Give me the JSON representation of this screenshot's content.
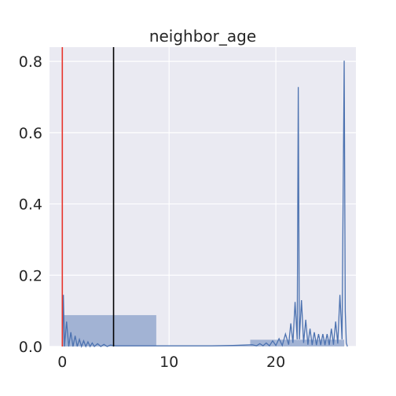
{
  "chart_data": {
    "type": "area",
    "title": "neighbor_age",
    "xlabel": "",
    "ylabel": "",
    "xlim": [
      -1.2,
      27.5
    ],
    "ylim": [
      0,
      0.84
    ],
    "xticks": [
      0,
      10,
      20
    ],
    "yticks": [
      0.0,
      0.2,
      0.4,
      0.6,
      0.8
    ],
    "xtick_labels": [
      "0",
      "10",
      "20"
    ],
    "ytick_labels": [
      "0.0",
      "0.2",
      "0.4",
      "0.6",
      "0.8"
    ],
    "grid": true,
    "legend": "none",
    "histogram": {
      "bins": [
        {
          "x0": 0,
          "x1": 8.8,
          "value": 0.088
        },
        {
          "x0": 8.8,
          "x1": 17.6,
          "value": 0.003
        },
        {
          "x0": 17.6,
          "x1": 26.4,
          "value": 0.019
        }
      ],
      "color": "#4c72b0"
    },
    "density_series": {
      "color": "#4c72b0",
      "x": [
        0.0,
        0.1,
        0.2,
        0.4,
        0.6,
        0.8,
        1.0,
        1.2,
        1.4,
        1.6,
        1.8,
        2.0,
        2.2,
        2.4,
        2.6,
        2.8,
        3.0,
        3.3,
        3.6,
        3.9,
        4.2,
        4.5,
        5.0,
        6.0,
        8.0,
        10.0,
        12.0,
        14.0,
        16.0,
        17.0,
        17.8,
        18.2,
        18.5,
        18.8,
        19.1,
        19.4,
        19.7,
        20.0,
        20.3,
        20.6,
        20.9,
        21.2,
        21.4,
        21.6,
        21.8,
        22.0,
        22.1,
        22.2,
        22.4,
        22.6,
        22.8,
        23.0,
        23.2,
        23.4,
        23.6,
        23.8,
        24.0,
        24.2,
        24.4,
        24.6,
        24.8,
        25.0,
        25.2,
        25.4,
        25.6,
        25.8,
        26.0,
        26.2,
        26.4,
        26.5,
        26.6,
        26.7
      ],
      "y": [
        0.0,
        0.145,
        0.0,
        0.07,
        0.0,
        0.04,
        0.0,
        0.03,
        0.0,
        0.02,
        0.0,
        0.016,
        0.0,
        0.013,
        0.0,
        0.01,
        0.0,
        0.008,
        0.0,
        0.006,
        0.0,
        0.004,
        0.002,
        0.002,
        0.002,
        0.002,
        0.002,
        0.002,
        0.003,
        0.004,
        0.005,
        0.002,
        0.008,
        0.002,
        0.01,
        0.002,
        0.016,
        0.003,
        0.022,
        0.003,
        0.035,
        0.005,
        0.065,
        0.01,
        0.125,
        0.02,
        0.728,
        0.02,
        0.13,
        0.01,
        0.075,
        0.005,
        0.05,
        0.004,
        0.04,
        0.004,
        0.035,
        0.004,
        0.035,
        0.004,
        0.035,
        0.004,
        0.05,
        0.005,
        0.07,
        0.008,
        0.145,
        0.02,
        0.802,
        0.1,
        0.01,
        0.0
      ]
    },
    "vlines": [
      {
        "x": 0,
        "color": "#e8352c"
      },
      {
        "x": 4.8,
        "color": "#000000"
      }
    ]
  }
}
